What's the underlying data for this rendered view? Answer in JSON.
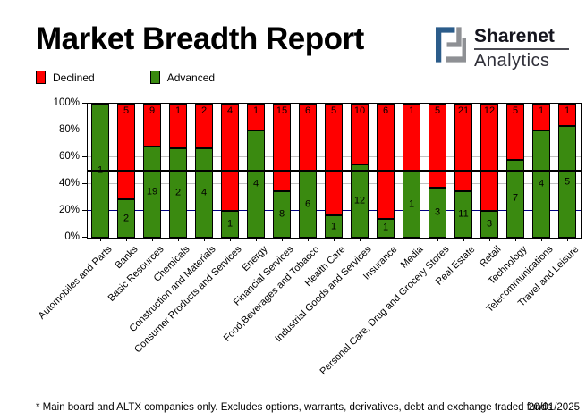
{
  "header": {
    "title": "Market Breadth Report"
  },
  "logo": {
    "name": "Sharenet",
    "sub": "Analytics",
    "blue": "#2B5C8A",
    "gray": "#8E9094"
  },
  "legend": {
    "items": [
      {
        "label": "Declined",
        "color": "#FF0000"
      },
      {
        "label": "Advanced",
        "color": "#3A8A10"
      }
    ]
  },
  "chart_data": {
    "type": "bar",
    "stacked": true,
    "normalized_to_percent": true,
    "title": "Market Breadth Report",
    "categories": [
      "Automobiles and Parts",
      "Banks",
      "Basic Resources",
      "Chemicals",
      "Construction and Materials",
      "Consumer Products and Services",
      "Energy",
      "Financial Services",
      "Food,Beverages and Tobacco",
      "Health Care",
      "Industrial Goods and Services",
      "Insurance",
      "Media",
      "Personal Care, Drug and Grocery Stores",
      "Real Estate",
      "Retail",
      "Technology",
      "Telecommunications",
      "Travel and Leisure"
    ],
    "series": [
      {
        "name": "Declined",
        "color": "#FF0000",
        "values": [
          0,
          5,
          9,
          1,
          2,
          4,
          1,
          15,
          6,
          5,
          10,
          6,
          1,
          5,
          21,
          12,
          5,
          1,
          1
        ]
      },
      {
        "name": "Advanced",
        "color": "#3A8A10",
        "values": [
          1,
          2,
          19,
          2,
          4,
          1,
          4,
          8,
          6,
          1,
          12,
          1,
          1,
          3,
          11,
          3,
          7,
          4,
          5
        ]
      }
    ],
    "ylabel": "",
    "xlabel": "",
    "ylim": [
      0,
      100
    ],
    "y_ticks": [
      "0%",
      "20%",
      "40%",
      "60%",
      "80%",
      "100%"
    ],
    "gridlines": {
      "navy_levels": [
        20,
        80
      ],
      "navy_color": "#000080",
      "silver_levels": [
        40,
        60
      ],
      "silver_color": "#C0C0C0",
      "reference_line_level": 50,
      "reference_line_color": "#000000"
    },
    "legend_position": "top-left"
  },
  "footer": {
    "note": "* Main board and ALTX companies only. Excludes options, warrants, derivatives, debt and exchange traded funds",
    "date": "20/01/2025"
  }
}
